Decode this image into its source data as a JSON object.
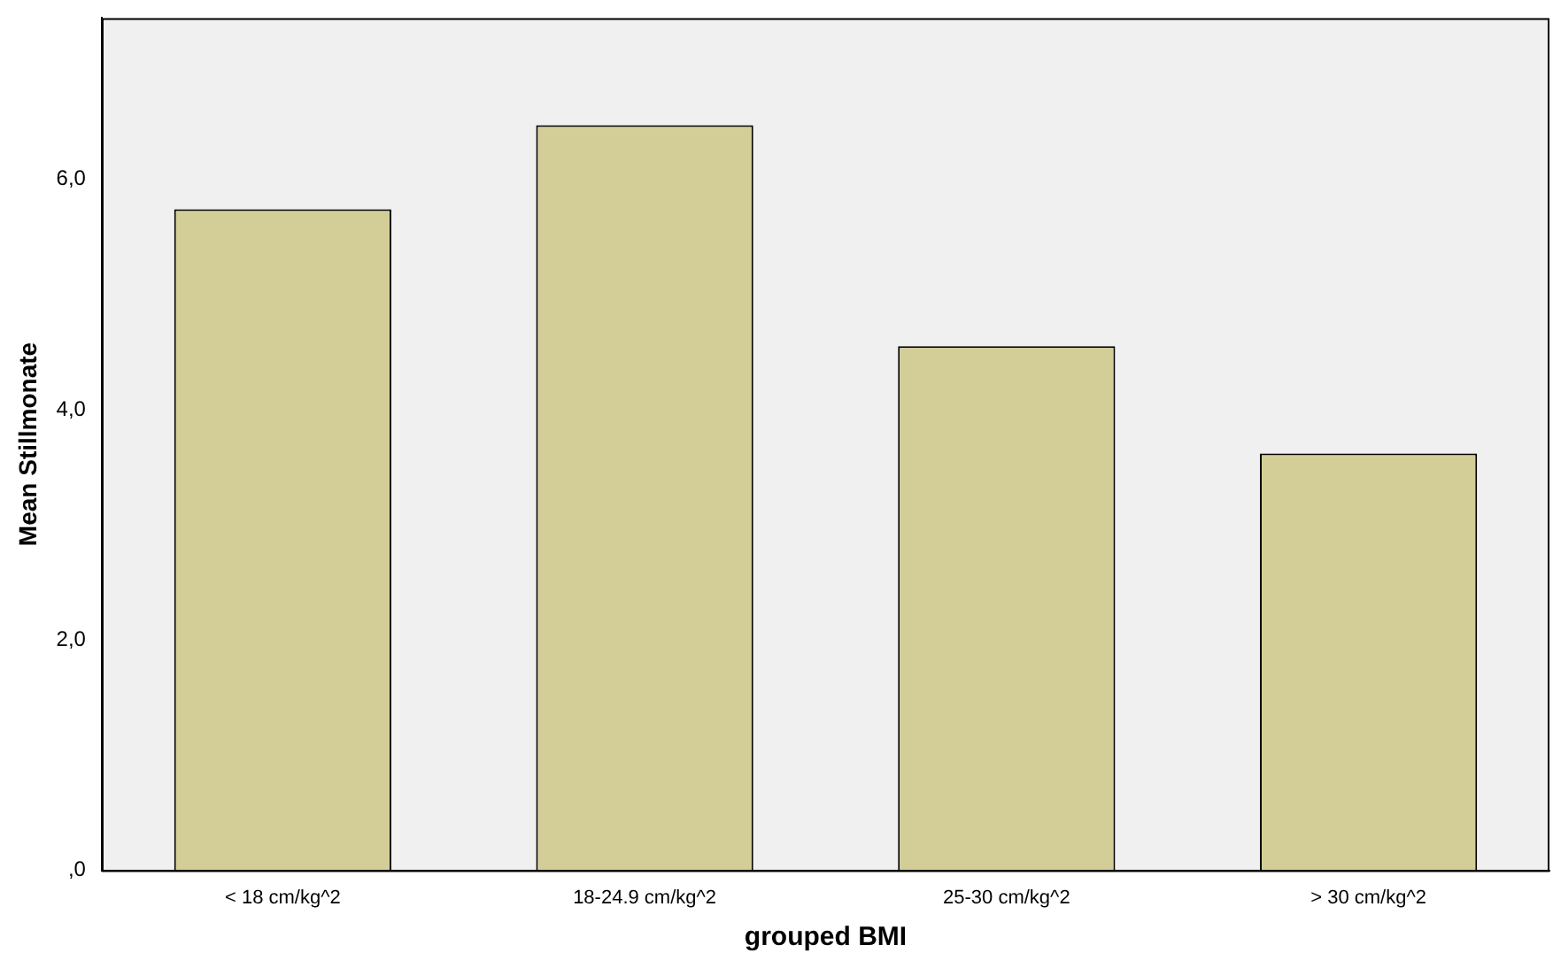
{
  "chart_data": {
    "type": "bar",
    "xlabel": "grouped BMI",
    "ylabel": "Mean Stillmonate",
    "categories": [
      "< 18 cm/kg^2",
      "18-24.9 cm/kg^2",
      "25-30 cm/kg^2",
      "> 30 cm/kg^2"
    ],
    "values": [
      5.74,
      6.47,
      4.55,
      3.62
    ],
    "color": "#d3ce97",
    "ylim": [
      0,
      7.4
    ],
    "yticks": [
      {
        "value": 0,
        "label": ",0"
      },
      {
        "value": 2,
        "label": "2,0"
      },
      {
        "value": 4,
        "label": "4,0"
      },
      {
        "value": 6,
        "label": "6,0"
      }
    ],
    "grid": false,
    "legend": false
  }
}
